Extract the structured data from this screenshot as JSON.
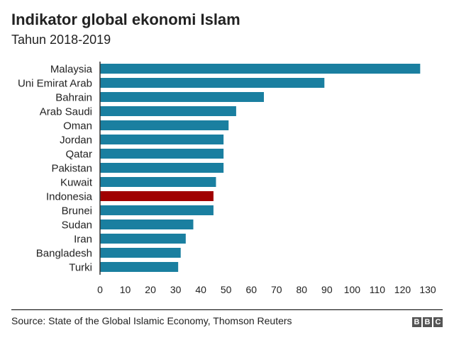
{
  "header": {
    "title": "Indikator global ekonomi Islam",
    "subtitle": "Tahun 2018-2019"
  },
  "footer": {
    "source": "Source: State of the Global Islamic Economy, Thomson Reuters",
    "logo_text": "BBC"
  },
  "colors": {
    "bar": "#1a7fa0",
    "highlight": "#a00000",
    "axis": "#333333",
    "text": "#222222"
  },
  "chart_data": {
    "type": "bar",
    "orientation": "horizontal",
    "title": "Indikator global ekonomi Islam",
    "subtitle": "Tahun 2018-2019",
    "xlabel": "",
    "ylabel": "",
    "xlim": [
      0,
      130
    ],
    "xticks": [
      0,
      10,
      20,
      30,
      40,
      50,
      60,
      70,
      80,
      90,
      100,
      110,
      120,
      130
    ],
    "grid": false,
    "highlight_category": "Indonesia",
    "categories": [
      "Malaysia",
      "Uni Emirat Arab",
      "Bahrain",
      "Arab Saudi",
      "Oman",
      "Jordan",
      "Qatar",
      "Pakistan",
      "Kuwait",
      "Indonesia",
      "Brunei",
      "Sudan",
      "Iran",
      "Bangladesh",
      "Turki"
    ],
    "values": [
      127,
      89,
      65,
      54,
      51,
      49,
      49,
      49,
      46,
      45,
      45,
      37,
      34,
      32,
      31
    ]
  }
}
